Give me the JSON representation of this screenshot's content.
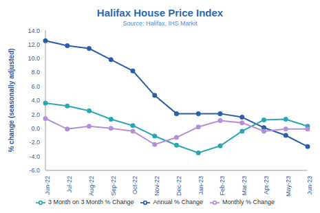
{
  "chart_data": {
    "type": "line",
    "title": "Halifax House Price Index",
    "subtitle": "Source: Halifax, IHS Markit",
    "y_label": "% change (seasonally adjusted)",
    "categories": [
      "Jun-22",
      "Jul-22",
      "Aug-22",
      "Sep-22",
      "Oct-22",
      "Nov-22",
      "Dec-22",
      "Jan-23",
      "Feb-23",
      "Mar-23",
      "Apr-23",
      "May-23",
      "Jun-23"
    ],
    "series": [
      {
        "name": "Annual % Change",
        "color": "#2a5ea8",
        "marker": "circle",
        "values": [
          12.5,
          11.8,
          11.4,
          9.8,
          8.2,
          4.7,
          2.1,
          2.1,
          2.1,
          1.6,
          0.1,
          -1.0,
          -2.6
        ]
      },
      {
        "name": "3 Month on 3 Month % Change",
        "color": "#2aa7b1",
        "marker": "circle",
        "values": [
          3.6,
          3.2,
          2.5,
          1.3,
          0.4,
          -1.1,
          -2.4,
          -3.5,
          -2.5,
          -0.4,
          1.2,
          1.3,
          0.3
        ]
      },
      {
        "name": "Monthly % Change",
        "color": "#b48fd8",
        "marker": "circle",
        "values": [
          1.4,
          -0.1,
          0.3,
          0.0,
          -0.4,
          -2.3,
          -1.3,
          0.2,
          1.1,
          0.8,
          -0.4,
          -0.1,
          -0.1
        ]
      }
    ],
    "ylim": [
      -6,
      14
    ],
    "yticks": [
      {
        "value": -6,
        "label": "-6.0"
      },
      {
        "value": -4,
        "label": "-4.0"
      },
      {
        "value": -2,
        "label": "-2.0"
      },
      {
        "value": 0,
        "label": "0.0"
      },
      {
        "value": 2,
        "label": "2.0"
      },
      {
        "value": 4,
        "label": "4.0"
      },
      {
        "value": 6,
        "label": "6.0"
      },
      {
        "value": 8,
        "label": "8.0"
      },
      {
        "value": 10,
        "label": "10.0"
      },
      {
        "value": 12,
        "label": "12.0"
      },
      {
        "value": 14,
        "label": "14.0"
      }
    ],
    "grid": false,
    "legend": "bottom"
  }
}
